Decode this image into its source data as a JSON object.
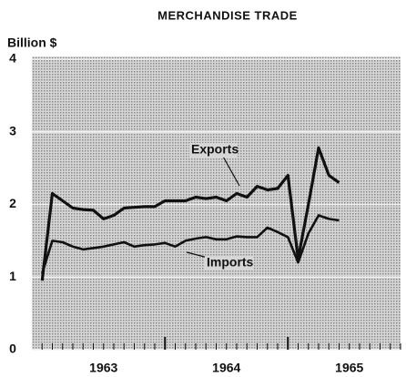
{
  "chart_data": {
    "type": "line",
    "title": "MERCHANDISE TRADE",
    "y_axis_label": "Billion $",
    "categories": [
      null,
      null,
      null,
      null,
      null,
      null,
      "1963",
      null,
      null,
      null,
      null,
      null,
      null,
      null,
      null,
      null,
      null,
      null,
      "1964",
      null,
      null,
      null,
      null,
      null,
      null,
      null,
      null,
      null,
      null,
      null,
      "1965",
      null,
      null,
      null,
      null,
      null
    ],
    "series": [
      {
        "name": "Exports",
        "color": "#111111",
        "values": [
          0.95,
          2.15,
          2.05,
          1.95,
          1.93,
          1.92,
          1.8,
          1.85,
          1.95,
          1.96,
          1.97,
          1.97,
          2.05,
          2.05,
          2.05,
          2.1,
          2.08,
          2.1,
          2.05,
          2.15,
          2.1,
          2.25,
          2.2,
          2.22,
          2.4,
          1.25,
          2.0,
          2.78,
          2.4,
          2.3,
          null,
          null,
          null,
          null,
          null,
          null
        ]
      },
      {
        "name": "Imports",
        "color": "#111111",
        "values": [
          1.05,
          1.5,
          1.48,
          1.42,
          1.38,
          1.4,
          1.42,
          1.45,
          1.48,
          1.42,
          1.44,
          1.45,
          1.47,
          1.42,
          1.5,
          1.53,
          1.55,
          1.52,
          1.52,
          1.56,
          1.55,
          1.55,
          1.68,
          1.62,
          1.55,
          1.2,
          1.6,
          1.85,
          1.8,
          1.78,
          null,
          null,
          null,
          null,
          null,
          null
        ]
      }
    ],
    "ylim": [
      0,
      4
    ],
    "yticks": [
      0,
      1,
      2,
      3,
      4
    ],
    "grid": true
  }
}
